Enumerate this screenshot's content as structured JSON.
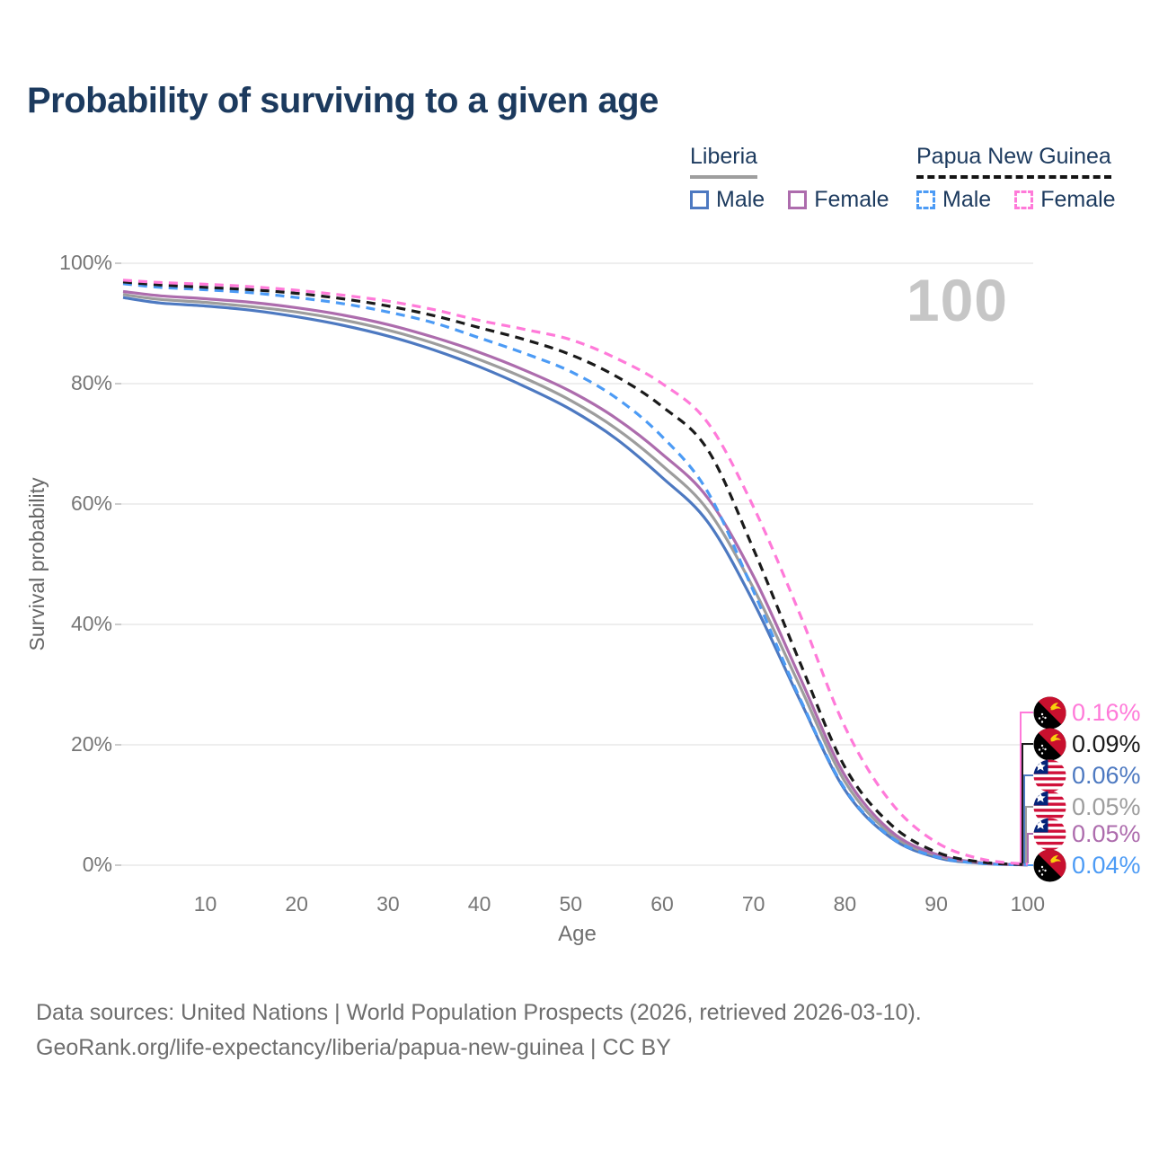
{
  "title": "Probability of surviving to a given age",
  "hover_age_label": "100",
  "legend": {
    "groups": [
      {
        "label": "Liberia",
        "underline_style": "solid",
        "underline_color": "#9e9e9e",
        "items": [
          {
            "label": "Male",
            "color": "#4d79c1",
            "dash": false
          },
          {
            "label": "Female",
            "color": "#ad6cad",
            "dash": false
          }
        ]
      },
      {
        "label": "Papua New Guinea",
        "underline_style": "dashed",
        "underline_color": "#141414",
        "items": [
          {
            "label": "Male",
            "color": "#4c9bf5",
            "dash": true
          },
          {
            "label": "Female",
            "color": "#ff7ad9",
            "dash": true
          }
        ]
      }
    ]
  },
  "chart_data": {
    "type": "line",
    "title": "Probability of surviving to a given age",
    "xlabel": "Age",
    "ylabel": "Survival probability",
    "xlim": [
      1,
      100
    ],
    "ylim": [
      0,
      100
    ],
    "grid": "horizontal",
    "x_ticks": [
      "10",
      "20",
      "30",
      "40",
      "50",
      "60",
      "70",
      "80",
      "90",
      "100"
    ],
    "y_ticks": [
      "0%",
      "20%",
      "40%",
      "60%",
      "80%",
      "100%"
    ],
    "ages": [
      1,
      5,
      10,
      15,
      20,
      25,
      30,
      35,
      40,
      45,
      50,
      55,
      60,
      65,
      70,
      75,
      80,
      85,
      90,
      95,
      100
    ],
    "series": [
      {
        "name": "Papua New Guinea Female",
        "flag": "papua-new-guinea-flag-icon",
        "color": "#ff7ad9",
        "dash": true,
        "end_label": "0.16%",
        "values": [
          97.2,
          96.8,
          96.5,
          96.1,
          95.5,
          94.7,
          93.7,
          92.3,
          90.5,
          89.0,
          87.3,
          84.2,
          80.0,
          73.5,
          59.5,
          42.0,
          23.0,
          10.5,
          3.8,
          1.0,
          0.16
        ]
      },
      {
        "name": "Papua New Guinea",
        "flag": "papua-new-guinea-flag-icon",
        "color": "#1a1a1a",
        "dash": true,
        "end_label": "0.09%",
        "values": [
          96.9,
          96.4,
          96.0,
          95.6,
          95.0,
          94.1,
          92.9,
          91.3,
          89.3,
          87.3,
          84.8,
          81.2,
          76.2,
          69.0,
          52.5,
          34.0,
          16.3,
          6.8,
          2.2,
          0.5,
          0.09
        ]
      },
      {
        "name": "Liberia Male",
        "flag": "liberia-flag-icon",
        "color": "#4d79c1",
        "dash": false,
        "end_label": "0.06%",
        "values": [
          94.3,
          93.4,
          92.9,
          92.2,
          91.1,
          89.7,
          87.9,
          85.6,
          82.8,
          79.5,
          75.7,
          70.8,
          64.4,
          57.0,
          43.7,
          27.7,
          12.5,
          4.6,
          1.3,
          0.3,
          0.06
        ]
      },
      {
        "name": "Liberia",
        "flag": "liberia-flag-icon",
        "color": "#9d9d9d",
        "dash": false,
        "end_label": "0.05%",
        "values": [
          94.8,
          94.0,
          93.5,
          92.8,
          91.9,
          90.6,
          88.9,
          86.7,
          84.0,
          80.9,
          77.2,
          72.5,
          66.4,
          59.0,
          46.0,
          30.0,
          13.9,
          5.2,
          1.6,
          0.35,
          0.05
        ]
      },
      {
        "name": "Liberia Female",
        "flag": "liberia-flag-icon",
        "color": "#ad6cad",
        "dash": false,
        "end_label": "0.05%",
        "values": [
          95.3,
          94.6,
          94.1,
          93.5,
          92.6,
          91.4,
          89.8,
          87.7,
          85.2,
          82.2,
          78.7,
          74.2,
          68.3,
          61.0,
          48.0,
          31.5,
          14.9,
          5.7,
          1.8,
          0.4,
          0.05
        ]
      },
      {
        "name": "Papua New Guinea Male",
        "flag": "papua-new-guinea-flag-icon",
        "color": "#4c9bf5",
        "dash": true,
        "end_label": "0.04%",
        "values": [
          96.6,
          96.0,
          95.6,
          95.1,
          94.3,
          93.3,
          91.9,
          90.1,
          87.6,
          85.0,
          82.0,
          77.6,
          71.2,
          62.0,
          45.5,
          28.0,
          12.7,
          4.7,
          1.4,
          0.3,
          0.04
        ]
      }
    ]
  },
  "footer": {
    "line1": "Data sources: United Nations | World Population Prospects (2026, retrieved 2026-03-10).",
    "line2": "GeoRank.org/life-expectancy/liberia/papua-new-guinea | CC BY"
  }
}
